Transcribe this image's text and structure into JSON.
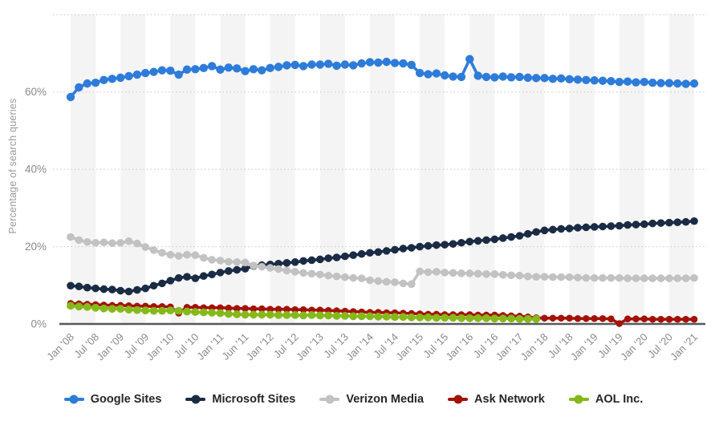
{
  "chart_data": {
    "type": "line",
    "title": "",
    "ylabel": "Percentage of search queries",
    "xlabel": "",
    "ylim": [
      0,
      80
    ],
    "y_tick_labels": [
      "0%",
      "20%",
      "40%",
      "60%"
    ],
    "y_gridline_values": [
      20,
      40,
      60,
      80
    ],
    "grid": "dotted-horizontal",
    "legend_position": "bottom",
    "plot_band_color": "#f4f4f4",
    "axis_line_color": "#58585a",
    "gridline_color": "#c9c9c9",
    "tick_label_color": "#8a8a8a",
    "x_tick_labels": [
      "Jan '08",
      "Jul '08",
      "Jan '09",
      "Jul '09",
      "Jan '10",
      "Jul '10",
      "Jan '11",
      "Jun '11",
      "Jan '12",
      "Jul '12",
      "Jan '13",
      "Jul '13",
      "Jan '14",
      "Jul '14",
      "Jan '15",
      "Jul '15",
      "Jan '16",
      "Jul '16",
      "Jan '17",
      "Jan '18",
      "Jul '18",
      "Jan '19",
      "Jul '19",
      "Jan '20",
      "Jul '20",
      "Jan '21"
    ],
    "series": [
      {
        "name": "Google Sites",
        "color": "#2e7cd9",
        "values": [
          58.7,
          61.2,
          62.2,
          62.4,
          63.1,
          63.4,
          63.7,
          64.1,
          64.5,
          64.9,
          65.2,
          65.6,
          65.5,
          64.5,
          65.8,
          65.9,
          66.2,
          66.7,
          65.8,
          66.3,
          66.1,
          65.4,
          65.9,
          65.6,
          66.2,
          66.5,
          66.9,
          67.0,
          66.7,
          67.1,
          67.1,
          67.3,
          66.8,
          67.1,
          66.9,
          67.4,
          67.7,
          67.6,
          67.8,
          67.5,
          67.4,
          67.0,
          64.9,
          64.6,
          64.8,
          64.3,
          64.0,
          63.9,
          68.5,
          64.2,
          63.9,
          63.8,
          64.0,
          63.8,
          63.9,
          63.7,
          63.6,
          63.6,
          63.4,
          63.5,
          63.3,
          63.2,
          63.1,
          63.0,
          62.9,
          62.8,
          62.6,
          62.7,
          62.5,
          62.6,
          62.4,
          62.3,
          62.3,
          62.2,
          62.1,
          62.2
        ]
      },
      {
        "name": "Microsoft Sites",
        "color": "#1a2c44",
        "values": [
          9.9,
          9.7,
          9.4,
          9.2,
          9.0,
          8.9,
          8.6,
          8.4,
          8.8,
          9.2,
          9.9,
          10.5,
          11.2,
          11.9,
          12.2,
          11.8,
          12.4,
          12.8,
          13.3,
          13.7,
          14.0,
          14.3,
          15.0,
          15.2,
          15.4,
          15.6,
          15.8,
          16.0,
          16.3,
          16.5,
          16.7,
          17.0,
          17.2,
          17.5,
          17.8,
          18.1,
          18.4,
          18.6,
          18.9,
          19.2,
          19.5,
          19.7,
          20.0,
          20.2,
          20.4,
          20.5,
          20.7,
          21.0,
          21.3,
          21.5,
          21.7,
          21.9,
          22.2,
          22.5,
          22.8,
          23.3,
          23.8,
          24.2,
          24.4,
          24.6,
          24.7,
          24.9,
          25.0,
          25.1,
          25.2,
          25.3,
          25.4,
          25.6,
          25.7,
          25.8,
          26.0,
          26.1,
          26.2,
          26.3,
          26.4,
          26.6
        ]
      },
      {
        "name": "Verizon Media",
        "color": "#c2c2c2",
        "values": [
          22.5,
          21.7,
          21.2,
          21.0,
          21.1,
          20.9,
          21.0,
          21.4,
          20.8,
          19.9,
          19.1,
          18.4,
          17.9,
          17.6,
          17.9,
          17.8,
          17.1,
          16.6,
          16.4,
          16.1,
          16.0,
          15.9,
          15.1,
          14.8,
          14.5,
          14.2,
          13.8,
          13.5,
          13.2,
          13.0,
          12.8,
          12.5,
          12.3,
          12.1,
          11.9,
          11.8,
          11.3,
          11.1,
          10.9,
          10.8,
          10.5,
          10.3,
          13.6,
          13.4,
          13.5,
          13.3,
          13.2,
          13.1,
          13.1,
          13.0,
          12.9,
          12.9,
          12.7,
          12.6,
          12.5,
          12.3,
          12.2,
          12.2,
          12.1,
          12.1,
          12.1,
          12.0,
          11.9,
          11.9,
          11.9,
          11.9,
          11.9,
          11.8,
          11.8,
          11.8,
          11.8,
          11.8,
          11.8,
          11.8,
          11.8,
          11.9
        ]
      },
      {
        "name": "Ask Network",
        "color": "#a31208",
        "values": [
          5.3,
          5.2,
          5.1,
          5.0,
          4.9,
          4.8,
          4.8,
          4.7,
          4.6,
          4.6,
          4.5,
          4.5,
          4.4,
          2.8,
          4.3,
          4.3,
          4.2,
          4.2,
          4.2,
          4.1,
          4.0,
          4.0,
          3.9,
          3.9,
          3.8,
          3.8,
          3.8,
          3.7,
          3.7,
          3.6,
          3.6,
          3.5,
          3.4,
          3.3,
          3.2,
          3.1,
          3.0,
          3.0,
          2.9,
          2.9,
          2.8,
          2.7,
          2.6,
          2.5,
          2.5,
          2.4,
          2.4,
          2.4,
          2.4,
          2.3,
          2.3,
          2.3,
          2.2,
          2.1,
          2.0,
          1.8,
          1.6,
          1.5,
          1.5,
          1.5,
          1.5,
          1.4,
          1.4,
          1.4,
          1.4,
          1.3,
          0.1,
          1.3,
          1.3,
          1.3,
          1.2,
          1.2,
          1.2,
          1.2,
          1.2,
          1.2
        ]
      },
      {
        "name": "AOL Inc.",
        "color": "#85b919",
        "values": [
          4.7,
          4.5,
          4.4,
          4.2,
          4.0,
          3.9,
          3.9,
          3.7,
          3.6,
          3.5,
          3.4,
          3.4,
          3.5,
          3.4,
          3.2,
          3.1,
          3.0,
          2.9,
          2.8,
          2.6,
          2.5,
          2.4,
          2.4,
          2.4,
          2.4,
          2.3,
          2.3,
          2.3,
          2.2,
          2.3,
          2.2,
          2.2,
          2.1,
          2.1,
          2.0,
          2.0,
          2.0,
          1.9,
          1.9,
          1.8,
          1.8,
          1.7,
          1.7,
          1.7,
          1.6,
          1.6,
          1.6,
          1.5,
          1.5,
          1.5,
          1.5,
          1.4,
          1.4,
          1.4,
          1.3,
          1.3,
          1.3,
          null,
          null,
          null,
          null,
          null,
          null,
          null,
          null,
          null,
          null,
          null,
          null,
          null,
          null,
          null,
          null,
          null,
          null,
          null
        ]
      }
    ]
  }
}
